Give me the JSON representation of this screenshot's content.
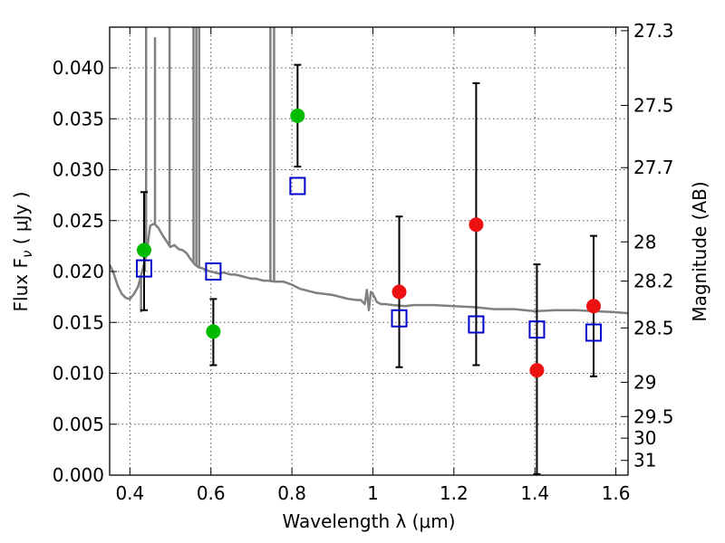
{
  "chart_data": {
    "type": "scatter",
    "xlabel": "Wavelength  λ (μm)",
    "ylabel": "Flux  F",
    "ylabel_sub": "ν",
    "ylabel_unit": "  ( μJy )",
    "ylabel_right": "Magnitude (AB)",
    "xlim": [
      0.35,
      1.63
    ],
    "ylim": [
      0.0,
      0.044
    ],
    "grid": true,
    "x_ticks": [
      0.4,
      0.6,
      0.8,
      1.0,
      1.2,
      1.4,
      1.6
    ],
    "x_tick_labels": [
      "0.4",
      "0.6",
      "0.8",
      "1",
      "1.2",
      "1.4",
      "1.6"
    ],
    "y_ticks": [
      0.0,
      0.005,
      0.01,
      0.015,
      0.02,
      0.025,
      0.03,
      0.035,
      0.04
    ],
    "y_tick_labels": [
      "0.000",
      "0.005",
      "0.010",
      "0.015",
      "0.020",
      "0.025",
      "0.030",
      "0.035",
      "0.040"
    ],
    "right_ticks": [
      {
        "label": "27.3",
        "mag": 27.3
      },
      {
        "label": "27.5",
        "mag": 27.5
      },
      {
        "label": "27.7",
        "mag": 27.7
      },
      {
        "label": "28",
        "mag": 28.0
      },
      {
        "label": "28.2",
        "mag": 28.2
      },
      {
        "label": "28.5",
        "mag": 28.5
      },
      {
        "label": "29",
        "mag": 29.0
      },
      {
        "label": "29.5",
        "mag": 29.5
      },
      {
        "label": "30",
        "mag": 30.0
      },
      {
        "label": "31",
        "mag": 31.0
      }
    ],
    "colors": {
      "green": "#00bb00",
      "red": "#ee1111",
      "blue": "#0000cc",
      "model": "#808080",
      "grid": "#555555",
      "errorbar": "#000000"
    },
    "series": [
      {
        "marker": "circle",
        "color": "#00bb00",
        "points": [
          {
            "x": 0.435,
            "y": 0.0221,
            "ylo": 0.0162,
            "yhi": 0.0278
          },
          {
            "x": 0.606,
            "y": 0.0141,
            "ylo": 0.0108,
            "yhi": 0.0173
          },
          {
            "x": 0.814,
            "y": 0.0353,
            "ylo": 0.0303,
            "yhi": 0.0403
          }
        ]
      },
      {
        "marker": "circle",
        "color": "#ee1111",
        "points": [
          {
            "x": 1.065,
            "y": 0.018,
            "ylo": 0.0106,
            "yhi": 0.0254
          },
          {
            "x": 1.255,
            "y": 0.0246,
            "ylo": 0.0108,
            "yhi": 0.0385
          },
          {
            "x": 1.405,
            "y": 0.0103,
            "ylo": 0.0001,
            "yhi": 0.0207
          },
          {
            "x": 1.545,
            "y": 0.0166,
            "ylo": 0.0097,
            "yhi": 0.0235
          }
        ]
      },
      {
        "marker": "square",
        "color": "#0000cc",
        "points": [
          {
            "x": 0.435,
            "y": 0.0203
          },
          {
            "x": 0.606,
            "y": 0.02
          },
          {
            "x": 0.814,
            "y": 0.0284
          },
          {
            "x": 1.065,
            "y": 0.0154
          },
          {
            "x": 1.255,
            "y": 0.0148
          },
          {
            "x": 1.405,
            "y": 0.0143
          },
          {
            "x": 1.545,
            "y": 0.014
          }
        ]
      }
    ],
    "model_spectrum": {
      "color": "#808080",
      "continuum": [
        [
          0.35,
          0.0207
        ],
        [
          0.36,
          0.0198
        ],
        [
          0.37,
          0.0186
        ],
        [
          0.38,
          0.0178
        ],
        [
          0.39,
          0.0174
        ],
        [
          0.4,
          0.0173
        ],
        [
          0.41,
          0.0178
        ],
        [
          0.42,
          0.0185
        ],
        [
          0.43,
          0.02
        ],
        [
          0.44,
          0.0215
        ],
        [
          0.445,
          0.023
        ],
        [
          0.45,
          0.0245
        ],
        [
          0.46,
          0.0247
        ],
        [
          0.47,
          0.0243
        ],
        [
          0.48,
          0.0236
        ],
        [
          0.49,
          0.023
        ],
        [
          0.5,
          0.0224
        ],
        [
          0.51,
          0.0226
        ],
        [
          0.52,
          0.0222
        ],
        [
          0.53,
          0.0221
        ],
        [
          0.54,
          0.0218
        ],
        [
          0.55,
          0.0212
        ],
        [
          0.56,
          0.0207
        ],
        [
          0.57,
          0.0204
        ],
        [
          0.58,
          0.0203
        ],
        [
          0.59,
          0.0201
        ],
        [
          0.6,
          0.02
        ],
        [
          0.61,
          0.0199
        ],
        [
          0.62,
          0.0198
        ],
        [
          0.63,
          0.0199
        ],
        [
          0.64,
          0.0198
        ],
        [
          0.65,
          0.0197
        ],
        [
          0.66,
          0.0197
        ],
        [
          0.67,
          0.0196
        ],
        [
          0.68,
          0.0195
        ],
        [
          0.69,
          0.0194
        ],
        [
          0.7,
          0.0193
        ],
        [
          0.71,
          0.0193
        ],
        [
          0.72,
          0.0192
        ],
        [
          0.73,
          0.0191
        ],
        [
          0.74,
          0.0191
        ],
        [
          0.76,
          0.019
        ],
        [
          0.78,
          0.019
        ],
        [
          0.8,
          0.0187
        ],
        [
          0.82,
          0.0183
        ],
        [
          0.84,
          0.0181
        ],
        [
          0.86,
          0.0179
        ],
        [
          0.88,
          0.0178
        ],
        [
          0.9,
          0.0177
        ],
        [
          0.92,
          0.0175
        ],
        [
          0.94,
          0.0173
        ],
        [
          0.96,
          0.0172
        ],
        [
          0.97,
          0.0172
        ],
        [
          0.98,
          0.0168
        ],
        [
          0.985,
          0.0182
        ],
        [
          0.99,
          0.0162
        ],
        [
          0.995,
          0.018
        ],
        [
          1.0,
          0.0178
        ],
        [
          1.01,
          0.017
        ],
        [
          1.02,
          0.0168
        ],
        [
          1.03,
          0.0168
        ],
        [
          1.05,
          0.0167
        ],
        [
          1.08,
          0.0166
        ],
        [
          1.1,
          0.0167
        ],
        [
          1.15,
          0.0167
        ],
        [
          1.2,
          0.0166
        ],
        [
          1.25,
          0.0165
        ],
        [
          1.3,
          0.0163
        ],
        [
          1.35,
          0.0163
        ],
        [
          1.4,
          0.0161
        ],
        [
          1.45,
          0.0162
        ],
        [
          1.5,
          0.0162
        ],
        [
          1.55,
          0.0161
        ],
        [
          1.6,
          0.016
        ],
        [
          1.63,
          0.0159
        ]
      ],
      "emission_lines": [
        {
          "x": 0.4275,
          "top": 0.016
        },
        {
          "x": 0.434,
          "top": 0.02
        },
        {
          "x": 0.437,
          "top": 0.02
        },
        {
          "x": 0.44,
          "top": 0.044
        },
        {
          "x": 0.462,
          "top": 0.043
        },
        {
          "x": 0.498,
          "top": 0.044
        },
        {
          "x": 0.557,
          "top": 0.044
        },
        {
          "x": 0.564,
          "top": 0.044
        },
        {
          "x": 0.571,
          "top": 0.044
        },
        {
          "x": 0.747,
          "top": 0.044
        },
        {
          "x": 0.756,
          "top": 0.044
        }
      ]
    }
  }
}
